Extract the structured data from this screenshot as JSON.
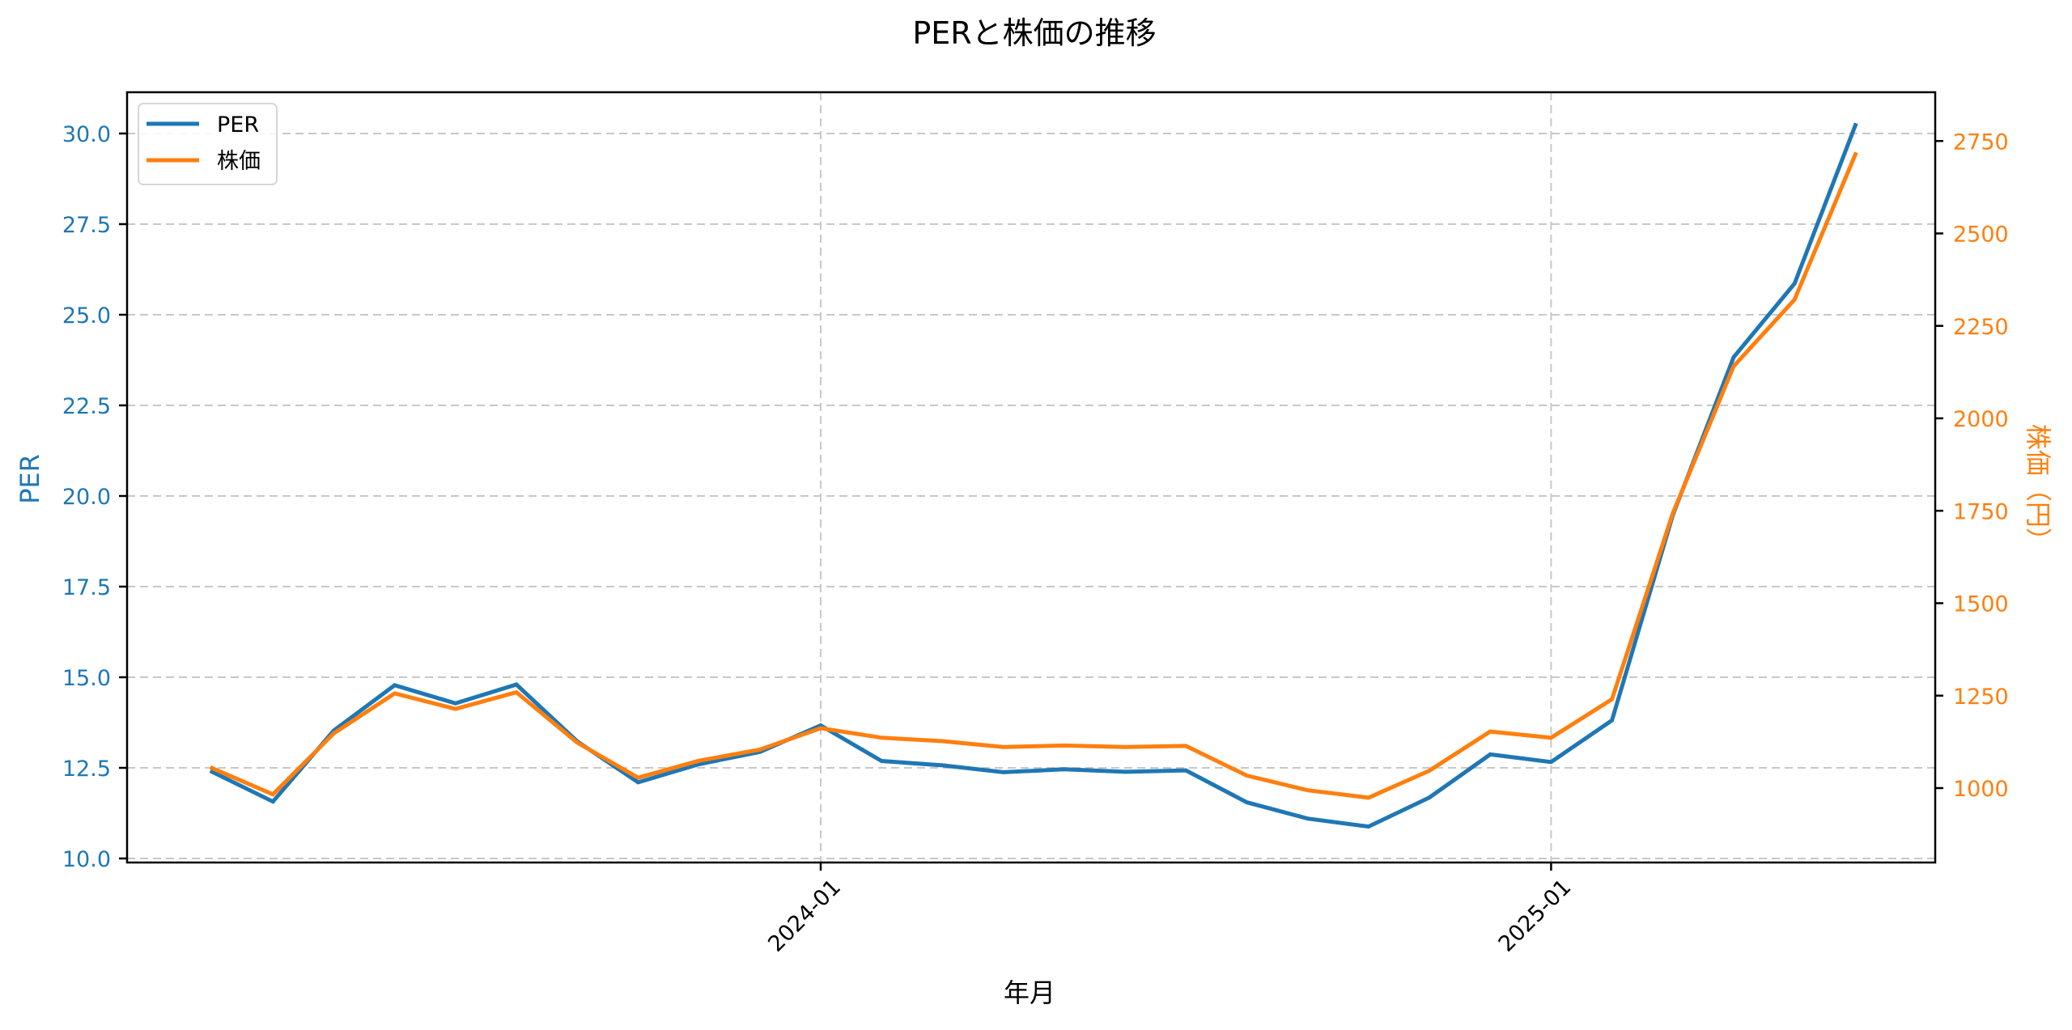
{
  "figure": {
    "title": "PERと株価の推移",
    "xlabel": "年月",
    "ylabel_left": "PER",
    "ylabel_right": "株価（円）",
    "colors": {
      "per": "#1f77b4",
      "price": "#ff7f0e",
      "grid": "#c8c8c8",
      "axes": "#000000"
    }
  },
  "legend": {
    "items": [
      {
        "label": "PER",
        "color": "#1f77b4"
      },
      {
        "label": "株価",
        "color": "#ff7f0e"
      }
    ],
    "position": "upper left"
  },
  "chart_data": {
    "type": "line",
    "title": "PERと株価の推移",
    "xlabel": "年月",
    "ylabel": "PER",
    "ylabel_right": "株価（円）",
    "x": [
      "2023-03",
      "2023-04",
      "2023-05",
      "2023-06",
      "2023-07",
      "2023-08",
      "2023-09",
      "2023-10",
      "2023-11",
      "2023-12",
      "2024-01",
      "2024-02",
      "2024-03",
      "2024-04",
      "2024-05",
      "2024-06",
      "2024-07",
      "2024-08",
      "2024-09",
      "2024-10",
      "2024-11",
      "2024-12",
      "2025-01",
      "2025-02",
      "2025-03",
      "2025-04",
      "2025-05",
      "2025-06"
    ],
    "x_ticks": [
      "2024-01",
      "2025-01"
    ],
    "x_tick_rotation": 45,
    "series": [
      {
        "name": "PER",
        "axis": "left",
        "color": "#1f77b4",
        "values": [
          12.39,
          11.57,
          13.53,
          14.78,
          14.28,
          14.8,
          13.23,
          12.1,
          12.6,
          12.94,
          13.67,
          12.69,
          12.57,
          12.38,
          12.46,
          12.39,
          12.43,
          11.55,
          11.1,
          10.88,
          11.68,
          12.87,
          12.66,
          13.81,
          19.47,
          23.83,
          25.86,
          30.23
        ]
      },
      {
        "name": "株価",
        "axis": "right",
        "color": "#ff7f0e",
        "values": [
          1054,
          983,
          1148,
          1256,
          1214,
          1259,
          1123,
          1028,
          1074,
          1104,
          1162,
          1136,
          1127,
          1111,
          1115,
          1111,
          1114,
          1034,
          994,
          974,
          1047,
          1153,
          1136,
          1240,
          1743,
          2141,
          2321,
          2714
        ]
      }
    ],
    "y_left": {
      "ylim": [
        9.9,
        31.15
      ],
      "ticks": [
        10.0,
        12.5,
        15.0,
        17.5,
        20.0,
        22.5,
        25.0,
        27.5,
        30.0
      ],
      "tick_labels": [
        "10.0",
        "12.5",
        "15.0",
        "17.5",
        "20.0",
        "22.5",
        "25.0",
        "27.5",
        "30.0"
      ]
    },
    "y_right": {
      "ylim": [
        792,
        2874
      ],
      "ticks": [
        1000,
        1250,
        1500,
        1750,
        2000,
        2250,
        2500,
        2750
      ],
      "tick_labels": [
        "1000",
        "1250",
        "1500",
        "1750",
        "2000",
        "2250",
        "2500",
        "2750"
      ]
    },
    "grid": true,
    "grid_style": "dashed",
    "legend_position": "upper left"
  }
}
